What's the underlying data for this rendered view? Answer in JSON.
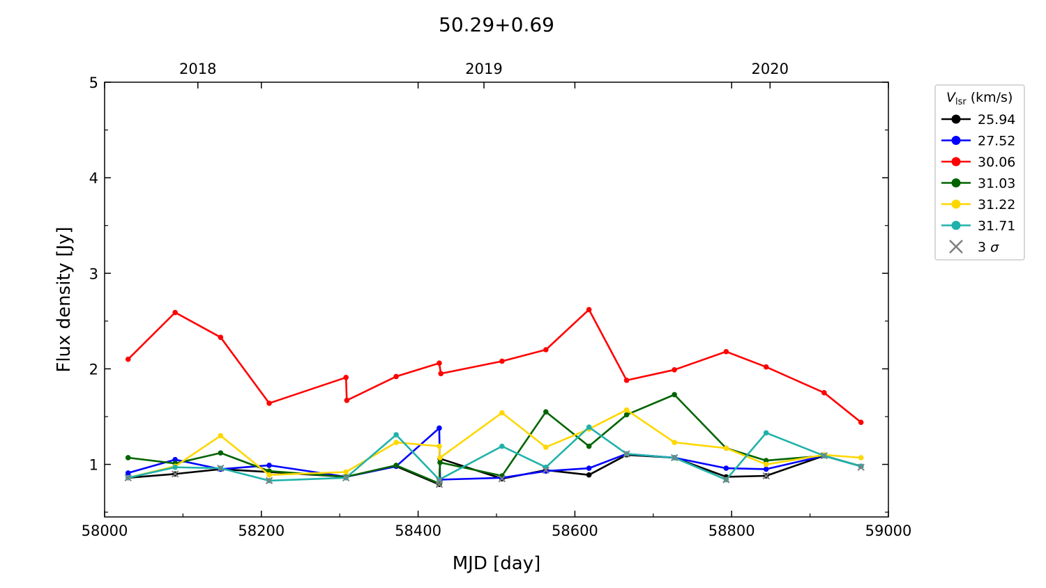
{
  "chart_data": {
    "type": "line",
    "title": "50.29+0.69",
    "xlabel": "MJD [day]",
    "ylabel": "Flux density [Jy]",
    "xlim": [
      58000,
      59000
    ],
    "ylim": [
      0.45,
      5.0
    ],
    "xticks": [
      58000,
      58200,
      58400,
      58600,
      58800,
      59000
    ],
    "xtick_labels": [
      "58000",
      "58200",
      "58400",
      "58600",
      "58800",
      "59000"
    ],
    "yticks": [
      1,
      2,
      3,
      4,
      5
    ],
    "ytick_labels": [
      "1",
      "2",
      "3",
      "4",
      "5"
    ],
    "top_axis": {
      "ticks": [
        58119,
        58484,
        58849
      ],
      "labels": [
        "2018",
        "2019",
        "2020"
      ]
    },
    "legend": {
      "title_symbol": "V",
      "title_subscript": "lsr",
      "title_unit": "(km/s)",
      "placement": "outside-right",
      "items": [
        {
          "label": "25.94",
          "color": "#000000",
          "marker": "dot"
        },
        {
          "label": "27.52",
          "color": "#0000ff",
          "marker": "dot"
        },
        {
          "label": "30.06",
          "color": "#ff0000",
          "marker": "dot"
        },
        {
          "label": "31.03",
          "color": "#006400",
          "marker": "dot"
        },
        {
          "label": "31.22",
          "color": "#ffd700",
          "marker": "dot"
        },
        {
          "label": "31.71",
          "color": "#20b2aa",
          "marker": "dot"
        },
        {
          "label": "3 σ",
          "color": "#808080",
          "marker": "x"
        }
      ]
    },
    "series": [
      {
        "name": "25.94",
        "color": "#000000",
        "points": [
          [
            58030,
            0.86
          ],
          [
            58090,
            0.9
          ],
          [
            58148,
            0.95
          ],
          [
            58210,
            0.92
          ],
          [
            58308,
            0.87
          ],
          [
            58372,
            0.98
          ],
          [
            58427,
            0.79
          ],
          [
            58428,
            1.06
          ],
          [
            58507,
            0.85
          ],
          [
            58563,
            0.94
          ],
          [
            58618,
            0.89
          ],
          [
            58666,
            1.1
          ],
          [
            58727,
            1.07
          ],
          [
            58793,
            0.87
          ],
          [
            58844,
            0.88
          ],
          [
            58918,
            1.09
          ],
          [
            58965,
            0.98
          ]
        ]
      },
      {
        "name": "27.52",
        "color": "#0000ff",
        "points": [
          [
            58030,
            0.91
          ],
          [
            58090,
            1.05
          ],
          [
            58148,
            0.95
          ],
          [
            58210,
            0.99
          ],
          [
            58308,
            0.87
          ],
          [
            58372,
            0.98
          ],
          [
            58427,
            1.38
          ],
          [
            58428,
            0.84
          ],
          [
            58507,
            0.86
          ],
          [
            58563,
            0.93
          ],
          [
            58618,
            0.96
          ],
          [
            58666,
            1.11
          ],
          [
            58727,
            1.07
          ],
          [
            58793,
            0.96
          ],
          [
            58844,
            0.95
          ],
          [
            58918,
            1.09
          ],
          [
            58965,
            0.98
          ]
        ]
      },
      {
        "name": "30.06",
        "color": "#ff0000",
        "points": [
          [
            58030,
            2.1
          ],
          [
            58090,
            2.59
          ],
          [
            58148,
            2.33
          ],
          [
            58210,
            1.64
          ],
          [
            58308,
            1.91
          ],
          [
            58309,
            1.67
          ],
          [
            58372,
            1.92
          ],
          [
            58427,
            2.06
          ],
          [
            58429,
            1.95
          ],
          [
            58507,
            2.08
          ],
          [
            58563,
            2.2
          ],
          [
            58618,
            2.62
          ],
          [
            58666,
            1.88
          ],
          [
            58727,
            1.99
          ],
          [
            58793,
            2.18
          ],
          [
            58844,
            2.02
          ],
          [
            58918,
            1.75
          ],
          [
            58965,
            1.44
          ]
        ]
      },
      {
        "name": "31.03",
        "color": "#006400",
        "points": [
          [
            58030,
            1.07
          ],
          [
            58090,
            1.01
          ],
          [
            58148,
            1.12
          ],
          [
            58210,
            0.93
          ],
          [
            58308,
            0.87
          ],
          [
            58372,
            0.99
          ],
          [
            58427,
            0.8
          ],
          [
            58428,
            1.02
          ],
          [
            58507,
            0.88
          ],
          [
            58563,
            1.55
          ],
          [
            58618,
            1.19
          ],
          [
            58666,
            1.52
          ],
          [
            58727,
            1.73
          ],
          [
            58793,
            1.17
          ],
          [
            58844,
            1.04
          ],
          [
            58918,
            1.09
          ],
          [
            58965,
            0.98
          ]
        ]
      },
      {
        "name": "31.22",
        "color": "#ffd700",
        "points": [
          [
            58030,
            0.86
          ],
          [
            58090,
            0.98
          ],
          [
            58148,
            1.3
          ],
          [
            58210,
            0.89
          ],
          [
            58308,
            0.92
          ],
          [
            58372,
            1.23
          ],
          [
            58427,
            1.19
          ],
          [
            58428,
            1.07
          ],
          [
            58507,
            1.54
          ],
          [
            58563,
            1.18
          ],
          [
            58618,
            1.37
          ],
          [
            58666,
            1.57
          ],
          [
            58727,
            1.23
          ],
          [
            58793,
            1.17
          ],
          [
            58844,
            1.0
          ],
          [
            58918,
            1.1
          ],
          [
            58965,
            1.07
          ]
        ]
      },
      {
        "name": "31.71",
        "color": "#20b2aa",
        "points": [
          [
            58030,
            0.86
          ],
          [
            58090,
            0.97
          ],
          [
            58148,
            0.96
          ],
          [
            58210,
            0.83
          ],
          [
            58308,
            0.86
          ],
          [
            58372,
            1.31
          ],
          [
            58427,
            0.84
          ],
          [
            58507,
            1.19
          ],
          [
            58563,
            0.97
          ],
          [
            58618,
            1.39
          ],
          [
            58666,
            1.11
          ],
          [
            58727,
            1.07
          ],
          [
            58793,
            0.84
          ],
          [
            58844,
            1.33
          ],
          [
            58918,
            1.09
          ],
          [
            58965,
            0.98
          ]
        ]
      }
    ],
    "three_sigma_markers": [
      [
        58030,
        0.86
      ],
      [
        58090,
        0.9
      ],
      [
        58148,
        0.96
      ],
      [
        58210,
        0.83
      ],
      [
        58308,
        0.86
      ],
      [
        58427,
        0.79
      ],
      [
        58427,
        0.83
      ],
      [
        58507,
        0.85
      ],
      [
        58563,
        0.94
      ],
      [
        58666,
        1.11
      ],
      [
        58727,
        1.07
      ],
      [
        58793,
        0.84
      ],
      [
        58844,
        0.88
      ],
      [
        58918,
        1.09
      ],
      [
        58965,
        0.97
      ]
    ]
  }
}
